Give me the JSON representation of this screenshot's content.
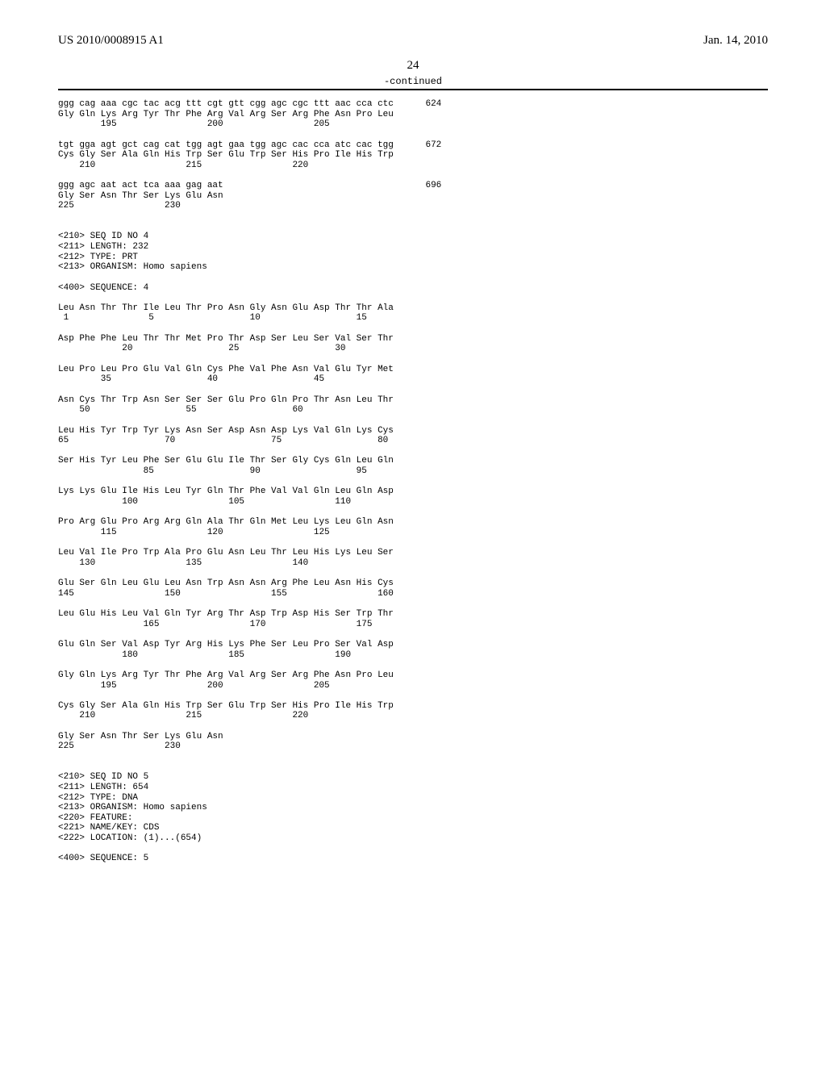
{
  "header": {
    "left": "US 2010/0008915 A1",
    "right": "Jan. 14, 2010"
  },
  "page_number": "24",
  "continued_label": "-continued",
  "sequence_text": "ggg cag aaa cgc tac acg ttt cgt gtt cgg agc cgc ttt aac cca ctc      624\nGly Gln Lys Arg Tyr Thr Phe Arg Val Arg Ser Arg Phe Asn Pro Leu\n        195                 200                 205\n\ntgt gga agt gct cag cat tgg agt gaa tgg agc cac cca atc cac tgg      672\nCys Gly Ser Ala Gln His Trp Ser Glu Trp Ser His Pro Ile His Trp\n    210                 215                 220\n\nggg agc aat act tca aaa gag aat                                      696\nGly Ser Asn Thr Ser Lys Glu Asn\n225                 230\n\n\n<210> SEQ ID NO 4\n<211> LENGTH: 232\n<212> TYPE: PRT\n<213> ORGANISM: Homo sapiens\n\n<400> SEQUENCE: 4\n\nLeu Asn Thr Thr Ile Leu Thr Pro Asn Gly Asn Glu Asp Thr Thr Ala\n 1               5                  10                  15\n\nAsp Phe Phe Leu Thr Thr Met Pro Thr Asp Ser Leu Ser Val Ser Thr\n            20                  25                  30\n\nLeu Pro Leu Pro Glu Val Gln Cys Phe Val Phe Asn Val Glu Tyr Met\n        35                  40                  45\n\nAsn Cys Thr Trp Asn Ser Ser Ser Glu Pro Gln Pro Thr Asn Leu Thr\n    50                  55                  60\n\nLeu His Tyr Trp Tyr Lys Asn Ser Asp Asn Asp Lys Val Gln Lys Cys\n65                  70                  75                  80\n\nSer His Tyr Leu Phe Ser Glu Glu Ile Thr Ser Gly Cys Gln Leu Gln\n                85                  90                  95\n\nLys Lys Glu Ile His Leu Tyr Gln Thr Phe Val Val Gln Leu Gln Asp\n            100                 105                 110\n\nPro Arg Glu Pro Arg Arg Gln Ala Thr Gln Met Leu Lys Leu Gln Asn\n        115                 120                 125\n\nLeu Val Ile Pro Trp Ala Pro Glu Asn Leu Thr Leu His Lys Leu Ser\n    130                 135                 140\n\nGlu Ser Gln Leu Glu Leu Asn Trp Asn Asn Arg Phe Leu Asn His Cys\n145                 150                 155                 160\n\nLeu Glu His Leu Val Gln Tyr Arg Thr Asp Trp Asp His Ser Trp Thr\n                165                 170                 175\n\nGlu Gln Ser Val Asp Tyr Arg His Lys Phe Ser Leu Pro Ser Val Asp\n            180                 185                 190\n\nGly Gln Lys Arg Tyr Thr Phe Arg Val Arg Ser Arg Phe Asn Pro Leu\n        195                 200                 205\n\nCys Gly Ser Ala Gln His Trp Ser Glu Trp Ser His Pro Ile His Trp\n    210                 215                 220\n\nGly Ser Asn Thr Ser Lys Glu Asn\n225                 230\n\n\n<210> SEQ ID NO 5\n<211> LENGTH: 654\n<212> TYPE: DNA\n<213> ORGANISM: Homo sapiens\n<220> FEATURE:\n<221> NAME/KEY: CDS\n<222> LOCATION: (1)...(654)\n\n<400> SEQUENCE: 5"
}
